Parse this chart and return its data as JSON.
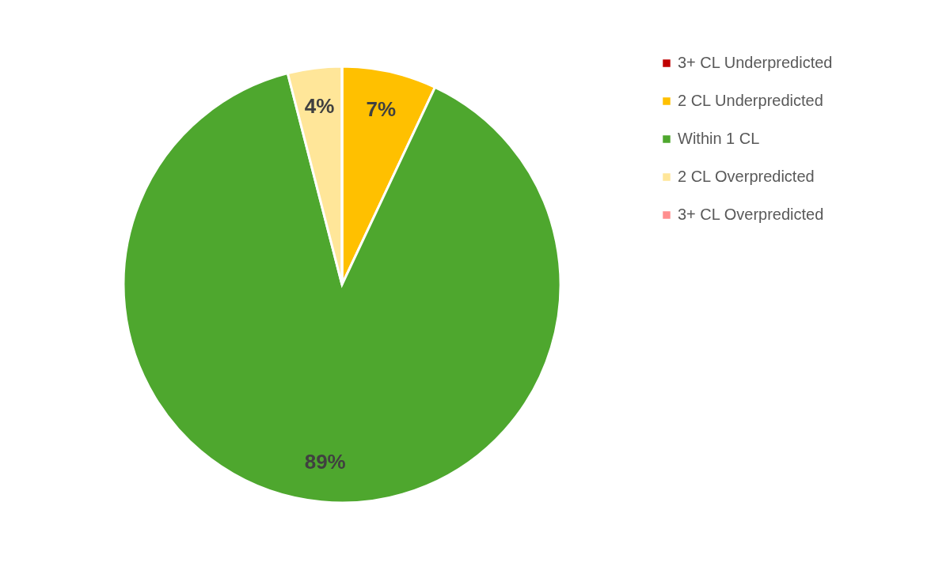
{
  "chart_data": {
    "type": "pie",
    "categories": [
      "3+ CL Underpredicted",
      "2 CL Underpredicted",
      "Within 1 CL",
      "2 CL Overpredicted",
      "3+ CL Overpredicted"
    ],
    "values": [
      0,
      7,
      89,
      4,
      0
    ],
    "colors": [
      "#c00000",
      "#ffc000",
      "#4ea72e",
      "#ffe699",
      "#ff8f8f"
    ],
    "value_labels": [
      null,
      "7%",
      "89%",
      "4%",
      null
    ],
    "legend": "right"
  }
}
